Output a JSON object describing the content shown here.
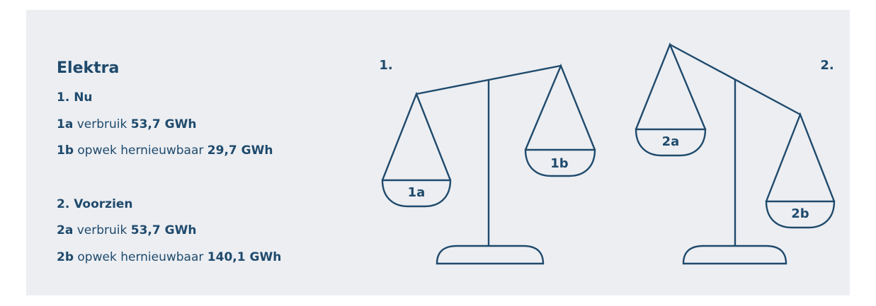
{
  "legend": {
    "title": "Elektra",
    "groups": [
      {
        "heading": "1. Nu",
        "items": [
          {
            "code": "1a",
            "label": "verbruik",
            "value": "53,7 GWh"
          },
          {
            "code": "1b",
            "label": "opwek hernieuwbaar",
            "value": "29,7 GWh"
          }
        ]
      },
      {
        "heading": "2. Voorzien",
        "items": [
          {
            "code": "2a",
            "label": "verbruik",
            "value": "53,7 GWh"
          },
          {
            "code": "2b",
            "label": "opwek hernieuwbaar",
            "value": "140,1 GWh"
          }
        ]
      }
    ]
  },
  "scales": [
    {
      "label": "1.",
      "pans": [
        "1a",
        "1b"
      ]
    },
    {
      "label": "2.",
      "pans": [
        "2a",
        "2b"
      ]
    }
  ]
}
